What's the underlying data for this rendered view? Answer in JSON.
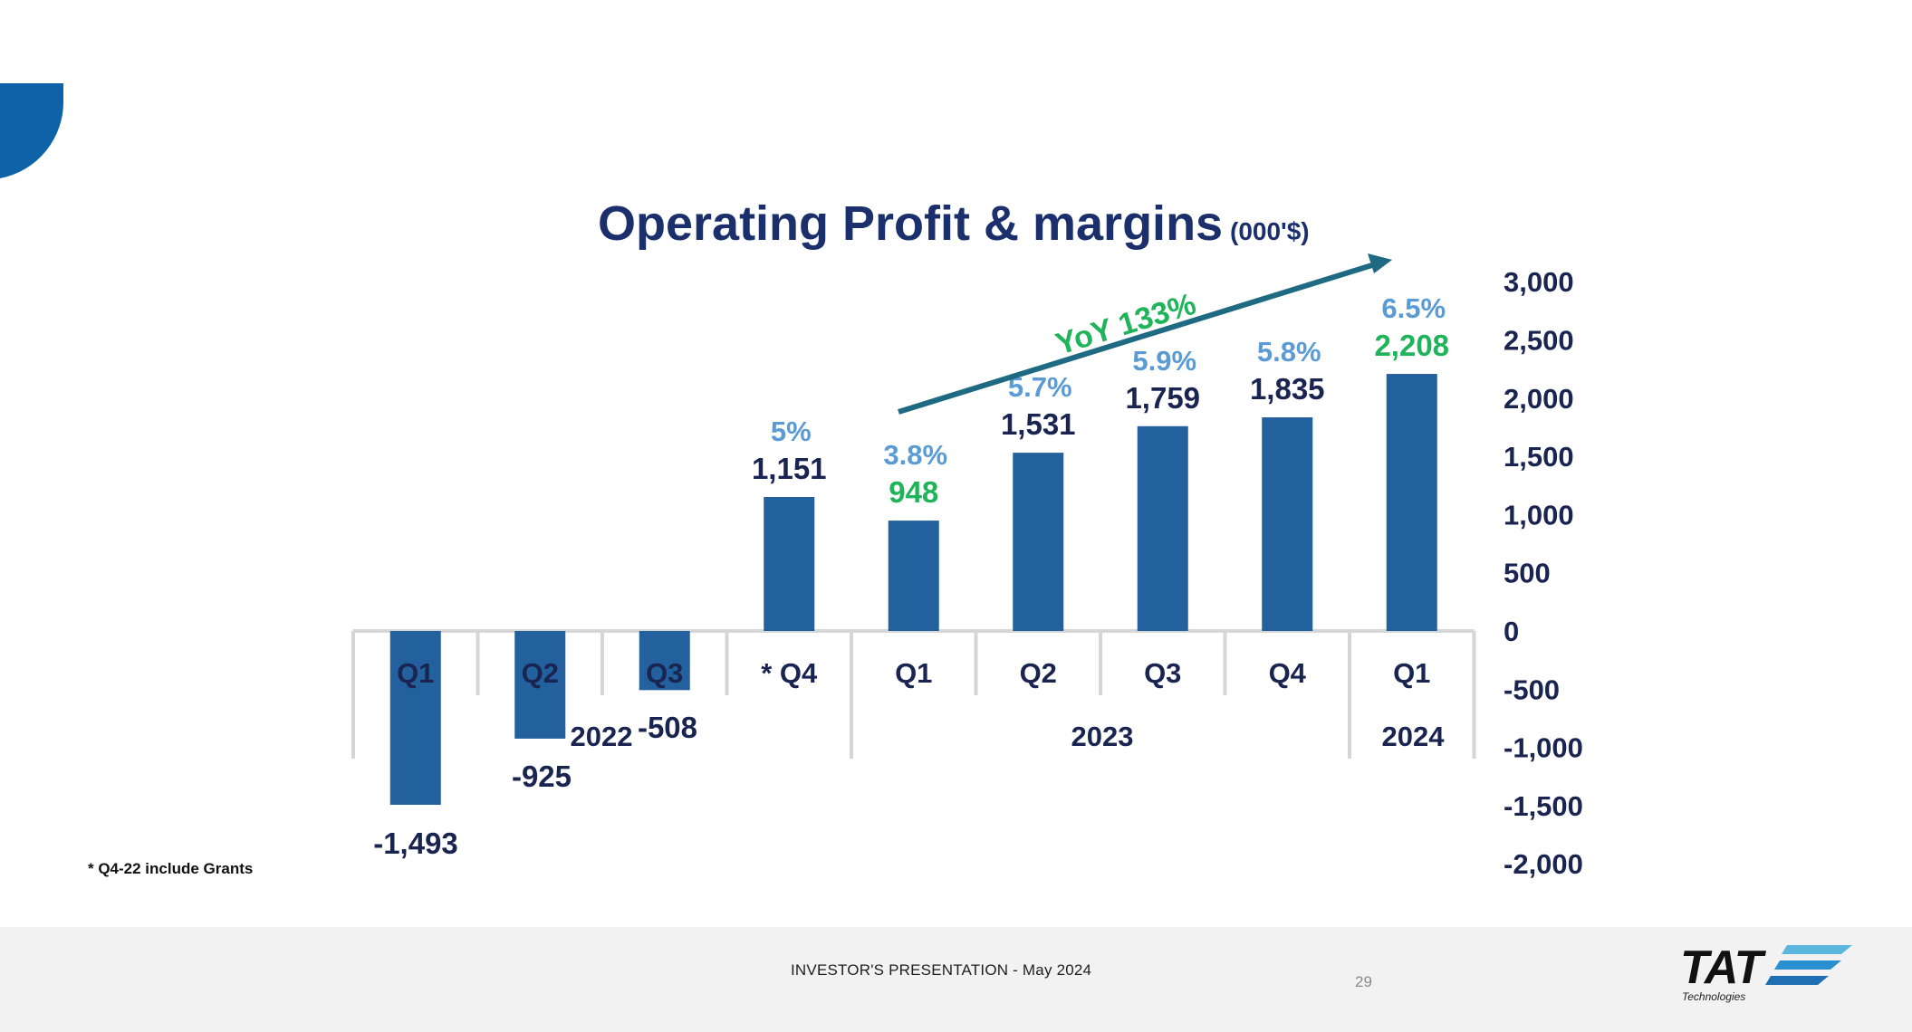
{
  "chart_data": {
    "type": "bar",
    "title": "Operating Profit & margins",
    "unit_label": "(000'$)",
    "categories": [
      "Q1",
      "Q2",
      "Q3",
      "* Q4",
      "Q1",
      "Q2",
      "Q3",
      "Q4",
      "Q1"
    ],
    "values": [
      -1493,
      -925,
      -508,
      1151,
      948,
      1531,
      1759,
      1835,
      2208
    ],
    "value_labels": [
      "-1,493",
      "-925",
      "-508",
      "1,151",
      "948",
      "1,531",
      "1,759",
      "1,835",
      "2,208"
    ],
    "margins": [
      "",
      "",
      "",
      "5%",
      "3.8%",
      "5.7%",
      "5.9%",
      "5.8%",
      "6.5%"
    ],
    "highlight_indices": [
      4,
      8
    ],
    "year_groups": [
      {
        "label": "2022",
        "span": [
          0,
          3
        ]
      },
      {
        "label": "2023",
        "span": [
          4,
          7
        ]
      },
      {
        "label": "2024",
        "span": [
          8,
          8
        ]
      }
    ],
    "yticks": [
      "3,000",
      "2,500",
      "2,000",
      "1,500",
      "1,000",
      "500",
      "0",
      "-500",
      "-1,000",
      "-1,500",
      "-2,000"
    ],
    "ytick_values": [
      3000,
      2500,
      2000,
      1500,
      1000,
      500,
      0,
      -500,
      -1000,
      -1500,
      -2000
    ],
    "ylim": [
      -2000,
      3000
    ],
    "annotation": "YoY 133%"
  },
  "colors": {
    "bar": "#22609e",
    "title": "#1a2f6b",
    "label": "#1a2451",
    "margin": "#5b9bd5",
    "highlight": "#1fb35a",
    "arrow": "#1d6a82",
    "corner": "#0d62a8"
  },
  "footnote": "* Q4-22 include Grants",
  "footer": {
    "title": "INVESTOR'S PRESENTATION - May 2024",
    "page": "29",
    "logo_text": "TAT",
    "logo_sub": "Technologies"
  }
}
